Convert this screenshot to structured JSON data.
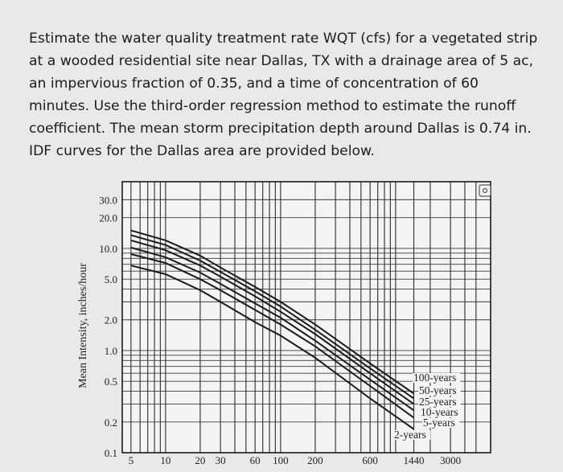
{
  "question": {
    "lines": [
      "Estimate the water quality treatment rate WQT (cfs) for a vegetated strip",
      "at a wooded residential site near Dallas, TX with a drainage area of 5 ac,",
      "an impervious fraction of 0.35, and a time of concentration of 60",
      "minutes. Use the third-order regression method to estimate the runoff",
      "coefficient. The mean storm precipitation depth around Dallas is 0.74 in.",
      "IDF curves for the Dallas area are provided below."
    ]
  },
  "chart_data": {
    "type": "line",
    "title": "",
    "xlabel": "",
    "ylabel": "Mean Intensity, inches/hour",
    "x_scale": "log",
    "y_scale": "log",
    "xlim": [
      4.2,
      6700
    ],
    "ylim": [
      0.1,
      45
    ],
    "grid": true,
    "x_ticks": [
      "5",
      "10",
      "20",
      "30",
      "60",
      "100",
      "200",
      "600",
      "1440",
      "3000"
    ],
    "x_tick_values": [
      5,
      10,
      20,
      30,
      60,
      100,
      200,
      600,
      1440,
      3000
    ],
    "y_ticks": [
      "30.0",
      "20.0",
      "10.0",
      "5.0",
      "2.0",
      "1.0",
      "0.5",
      "0.2",
      "0.1"
    ],
    "y_tick_values": [
      30,
      20,
      10,
      5,
      2,
      1,
      0.5,
      0.2,
      0.1
    ],
    "x": [
      5,
      10,
      20,
      30,
      60,
      100,
      200,
      600,
      1440
    ],
    "series": [
      {
        "name": "100-years",
        "values": [
          15,
          12,
          8.5,
          6.5,
          4.2,
          3.0,
          1.8,
          0.75,
          0.38
        ]
      },
      {
        "name": "50-years",
        "values": [
          13.5,
          10.8,
          7.6,
          5.9,
          3.8,
          2.7,
          1.6,
          0.67,
          0.34
        ]
      },
      {
        "name": "25-years",
        "values": [
          12,
          9.6,
          6.8,
          5.3,
          3.4,
          2.4,
          1.45,
          0.6,
          0.3
        ]
      },
      {
        "name": "10-years",
        "values": [
          10.2,
          8.2,
          5.8,
          4.5,
          2.9,
          2.1,
          1.25,
          0.52,
          0.26
        ]
      },
      {
        "name": "5-years",
        "values": [
          8.8,
          7.2,
          5.0,
          3.9,
          2.5,
          1.8,
          1.1,
          0.45,
          0.22
        ]
      },
      {
        "name": "2-years",
        "values": [
          6.8,
          5.6,
          3.9,
          3.0,
          1.9,
          1.4,
          0.85,
          0.34,
          0.17
        ]
      }
    ],
    "legend": "inline-right",
    "colors": {
      "lines": "#1a1a1a",
      "background": "#f4f4f2"
    }
  }
}
